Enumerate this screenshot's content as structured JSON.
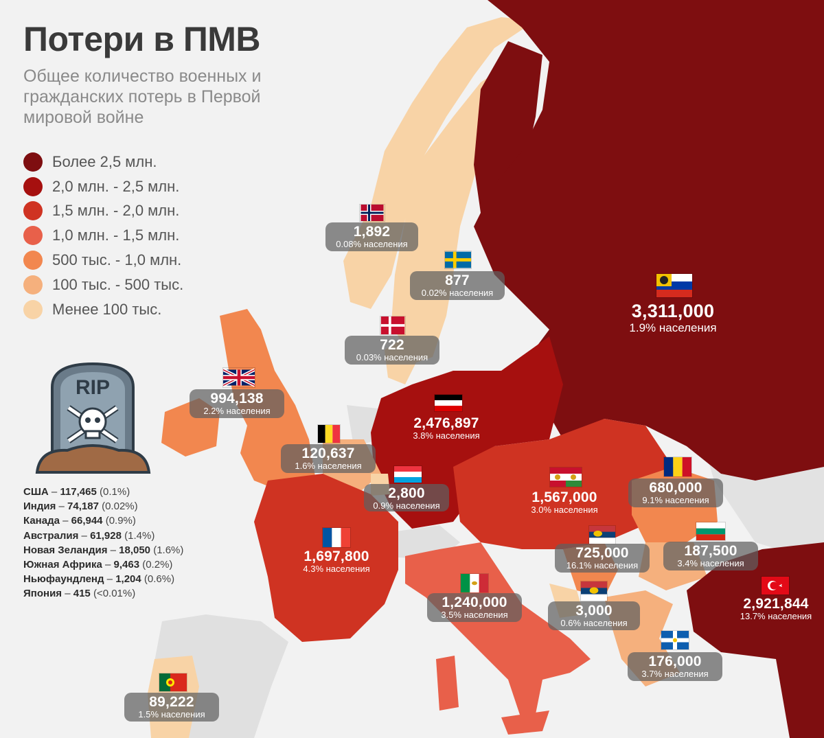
{
  "header": {
    "title": "Потери в ПМВ",
    "subtitle": "Общее количество военных и гражданских потерь в Первой мировой войне"
  },
  "legend": [
    {
      "label": "Более 2,5 млн.",
      "color": "#7e0e10"
    },
    {
      "label": "2,0 млн. - 2,5 млн.",
      "color": "#a6100f"
    },
    {
      "label": "1,5 млн. - 2,0 млн.",
      "color": "#cf3322"
    },
    {
      "label": "1,0 млн. - 1,5 млн.",
      "color": "#e8604a"
    },
    {
      "label": "500 тыс. - 1,0 млн.",
      "color": "#f2874f"
    },
    {
      "label": "100 тыс. - 500 тыс.",
      "color": "#f5b07d"
    },
    {
      "label": "Менее 100 тыс.",
      "color": "#f8d3a6"
    }
  ],
  "others": [
    {
      "country": "США",
      "value": "117,465",
      "pct": "(0.1%)"
    },
    {
      "country": "Индия",
      "value": "74,187",
      "pct": "(0.02%)"
    },
    {
      "country": "Канада",
      "value": "66,944",
      "pct": "(0.9%)"
    },
    {
      "country": "Австралия",
      "value": "61,928",
      "pct": "(1.4%)"
    },
    {
      "country": "Новая Зеландия",
      "value": "18,050",
      "pct": "(1.6%)"
    },
    {
      "country": "Южная Африка",
      "value": "9,463",
      "pct": "(0.2%)"
    },
    {
      "country": "Ньюфаундленд",
      "value": "1,204",
      "pct": "(0.6%)"
    },
    {
      "country": "Япония",
      "value": "415",
      "pct": "(<0.01%)"
    }
  ],
  "tombstone": {
    "text": "RIP",
    "icon": "tombstone-skull-icon"
  },
  "countries": {
    "norway": {
      "value": "1,892",
      "pct": "0.08% населения"
    },
    "sweden": {
      "value": "877",
      "pct": "0.02% населения"
    },
    "denmark": {
      "value": "722",
      "pct": "0.03% населения"
    },
    "russia": {
      "value": "3,311,000",
      "pct": "1.9% населения"
    },
    "uk": {
      "value": "994,138",
      "pct": "2.2% населения"
    },
    "germany": {
      "value": "2,476,897",
      "pct": "3.8% населения"
    },
    "belgium": {
      "value": "120,637",
      "pct": "1.6% населения"
    },
    "luxembourg": {
      "value": "2,800",
      "pct": "0.9% населения"
    },
    "austria_hungary": {
      "value": "1,567,000",
      "pct": "3.0% населения"
    },
    "romania": {
      "value": "680,000",
      "pct": "9.1% населения"
    },
    "france": {
      "value": "1,697,800",
      "pct": "4.3% населения"
    },
    "serbia": {
      "value": "725,000",
      "pct": "16.1% населения"
    },
    "bulgaria": {
      "value": "187,500",
      "pct": "3.4% населения"
    },
    "italy": {
      "value": "1,240,000",
      "pct": "3.5% населения"
    },
    "montenegro": {
      "value": "3,000",
      "pct": "0.6% населения"
    },
    "ottoman": {
      "value": "2,921,844",
      "pct": "13.7% населения"
    },
    "greece": {
      "value": "176,000",
      "pct": "3.7% населения"
    },
    "portugal": {
      "value": "89,222",
      "pct": "1.5% населения"
    }
  }
}
